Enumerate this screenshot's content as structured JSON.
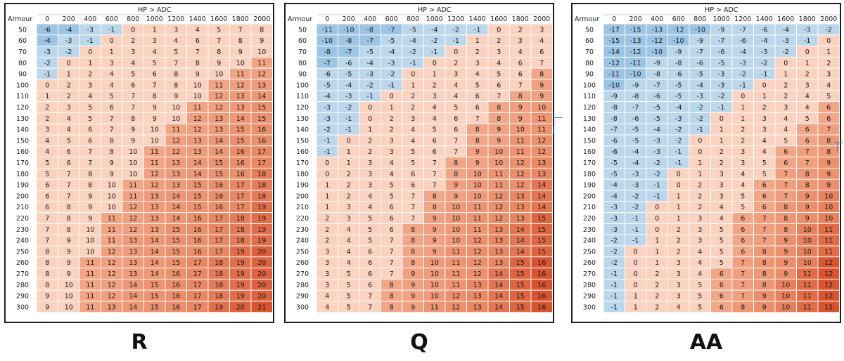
{
  "chart_data": [
    {
      "type": "heatmap",
      "label": "R",
      "top_title": "HP > ADC",
      "row_header": "Armour",
      "columns": [
        0,
        200,
        400,
        600,
        800,
        1000,
        1200,
        1400,
        1600,
        1800,
        2000
      ],
      "rows": [
        50,
        60,
        70,
        80,
        90,
        100,
        110,
        120,
        130,
        140,
        150,
        160,
        170,
        180,
        190,
        200,
        210,
        220,
        230,
        240,
        250,
        260,
        270,
        280,
        290,
        300
      ],
      "values": [
        [
          -6,
          -4,
          -3,
          -1,
          0,
          1,
          3,
          4,
          5,
          7,
          8
        ],
        [
          -4,
          -3,
          -1,
          0,
          2,
          3,
          4,
          6,
          7,
          8,
          9
        ],
        [
          -3,
          -2,
          0,
          1,
          3,
          4,
          5,
          7,
          8,
          9,
          10
        ],
        [
          -2,
          0,
          1,
          3,
          4,
          5,
          7,
          8,
          9,
          10,
          11
        ],
        [
          -1,
          1,
          2,
          4,
          5,
          6,
          8,
          9,
          10,
          11,
          12
        ],
        [
          0,
          2,
          3,
          4,
          6,
          7,
          8,
          10,
          11,
          12,
          13
        ],
        [
          1,
          2,
          4,
          5,
          7,
          8,
          9,
          10,
          12,
          13,
          14
        ],
        [
          2,
          3,
          5,
          6,
          7,
          9,
          10,
          11,
          12,
          13,
          15
        ],
        [
          2,
          4,
          5,
          7,
          8,
          9,
          10,
          12,
          13,
          14,
          15
        ],
        [
          3,
          4,
          6,
          7,
          9,
          10,
          11,
          12,
          13,
          15,
          16
        ],
        [
          4,
          5,
          6,
          8,
          9,
          10,
          12,
          13,
          14,
          15,
          16
        ],
        [
          4,
          6,
          7,
          8,
          10,
          11,
          12,
          13,
          14,
          16,
          17
        ],
        [
          5,
          6,
          7,
          9,
          10,
          11,
          13,
          14,
          15,
          16,
          17
        ],
        [
          5,
          7,
          8,
          9,
          10,
          12,
          13,
          14,
          15,
          16,
          18
        ],
        [
          6,
          7,
          8,
          10,
          11,
          12,
          13,
          15,
          16,
          17,
          18
        ],
        [
          6,
          7,
          9,
          10,
          11,
          13,
          14,
          15,
          16,
          17,
          18
        ],
        [
          6,
          8,
          9,
          10,
          12,
          13,
          14,
          15,
          16,
          17,
          19
        ],
        [
          7,
          8,
          9,
          11,
          12,
          13,
          14,
          16,
          17,
          18,
          19
        ],
        [
          7,
          8,
          10,
          11,
          12,
          13,
          15,
          16,
          17,
          18,
          19
        ],
        [
          7,
          9,
          10,
          11,
          13,
          14,
          15,
          16,
          17,
          18,
          19
        ],
        [
          8,
          9,
          10,
          12,
          13,
          14,
          15,
          16,
          17,
          19,
          20
        ],
        [
          8,
          9,
          11,
          12,
          13,
          14,
          15,
          17,
          18,
          19,
          20
        ],
        [
          8,
          9,
          11,
          12,
          13,
          14,
          16,
          17,
          18,
          19,
          20
        ],
        [
          8,
          10,
          11,
          12,
          14,
          15,
          16,
          17,
          18,
          19,
          20
        ],
        [
          9,
          10,
          11,
          12,
          14,
          15,
          16,
          17,
          18,
          19,
          20
        ],
        [
          9,
          10,
          11,
          13,
          14,
          15,
          16,
          17,
          19,
          20,
          21
        ]
      ]
    },
    {
      "type": "heatmap",
      "label": "Q",
      "top_title": "HP > ADC",
      "row_header": "Armour",
      "columns": [
        0,
        200,
        400,
        600,
        800,
        1000,
        1200,
        1400,
        1600,
        1800,
        2000
      ],
      "rows": [
        50,
        60,
        70,
        80,
        90,
        100,
        110,
        120,
        130,
        140,
        150,
        160,
        170,
        180,
        190,
        200,
        210,
        220,
        230,
        240,
        250,
        260,
        270,
        280,
        290,
        300
      ],
      "values": [
        [
          -11,
          -10,
          -8,
          -7,
          -5,
          -4,
          -2,
          -1,
          0,
          2,
          3
        ],
        [
          -10,
          -8,
          -7,
          -5,
          -4,
          -2,
          -1,
          1,
          2,
          3,
          4
        ],
        [
          -8,
          -7,
          -5,
          -4,
          -2,
          -1,
          0,
          2,
          3,
          4,
          6
        ],
        [
          -7,
          -6,
          -4,
          -3,
          -1,
          0,
          2,
          3,
          4,
          6,
          7
        ],
        [
          -6,
          -5,
          -3,
          -2,
          0,
          1,
          3,
          4,
          5,
          6,
          8
        ],
        [
          -5,
          -4,
          -2,
          -1,
          1,
          2,
          4,
          5,
          6,
          7,
          9
        ],
        [
          -4,
          -3,
          -1,
          0,
          2,
          3,
          4,
          6,
          7,
          8,
          9
        ],
        [
          -3,
          -2,
          0,
          1,
          2,
          4,
          5,
          6,
          8,
          9,
          10
        ],
        [
          -3,
          -1,
          0,
          2,
          3,
          4,
          6,
          7,
          8,
          9,
          11
        ],
        [
          -2,
          -1,
          1,
          2,
          4,
          5,
          6,
          8,
          9,
          10,
          11
        ],
        [
          -1,
          0,
          2,
          3,
          4,
          6,
          7,
          8,
          9,
          11,
          12
        ],
        [
          -1,
          1,
          2,
          3,
          5,
          6,
          7,
          9,
          10,
          11,
          12
        ],
        [
          0,
          1,
          3,
          4,
          5,
          7,
          8,
          9,
          10,
          12,
          13
        ],
        [
          0,
          2,
          3,
          4,
          6,
          7,
          8,
          10,
          11,
          12,
          13
        ],
        [
          1,
          2,
          3,
          5,
          6,
          7,
          9,
          10,
          11,
          12,
          14
        ],
        [
          1,
          2,
          4,
          5,
          7,
          8,
          9,
          10,
          12,
          13,
          14
        ],
        [
          1,
          3,
          4,
          6,
          7,
          8,
          10,
          11,
          12,
          13,
          14
        ],
        [
          2,
          3,
          5,
          6,
          7,
          9,
          10,
          11,
          12,
          13,
          15
        ],
        [
          2,
          4,
          5,
          6,
          8,
          9,
          10,
          11,
          13,
          14,
          15
        ],
        [
          2,
          4,
          5,
          7,
          8,
          9,
          10,
          12,
          13,
          14,
          15
        ],
        [
          3,
          4,
          6,
          7,
          8,
          9,
          11,
          12,
          13,
          14,
          15
        ],
        [
          3,
          4,
          6,
          7,
          8,
          10,
          11,
          12,
          13,
          15,
          16
        ],
        [
          3,
          5,
          6,
          7,
          9,
          10,
          11,
          12,
          14,
          15,
          16
        ],
        [
          3,
          5,
          6,
          8,
          9,
          10,
          11,
          13,
          14,
          15,
          16
        ],
        [
          4,
          5,
          7,
          8,
          9,
          10,
          12,
          13,
          14,
          15,
          16
        ],
        [
          4,
          5,
          7,
          8,
          9,
          11,
          12,
          13,
          14,
          15,
          16
        ]
      ]
    },
    {
      "type": "heatmap",
      "label": "AA",
      "top_title": "HP > ADC",
      "row_header": "Armour",
      "columns": [
        0,
        200,
        400,
        600,
        800,
        1000,
        1200,
        1400,
        1600,
        1800,
        2000
      ],
      "rows": [
        50,
        60,
        70,
        80,
        90,
        100,
        110,
        120,
        130,
        140,
        150,
        160,
        170,
        180,
        190,
        200,
        210,
        220,
        230,
        240,
        250,
        260,
        270,
        280,
        290,
        300
      ],
      "values": [
        [
          -17,
          -15,
          -13,
          -12,
          -10,
          -9,
          -7,
          -6,
          -4,
          -3,
          -2
        ],
        [
          -15,
          -13,
          -12,
          -10,
          -9,
          -7,
          -6,
          -4,
          -3,
          -1,
          0
        ],
        [
          -14,
          -12,
          -10,
          -9,
          -7,
          -6,
          -4,
          -3,
          -2,
          0,
          1
        ],
        [
          -12,
          -11,
          -9,
          -8,
          -6,
          -5,
          -3,
          -2,
          0,
          1,
          2
        ],
        [
          -11,
          -10,
          -8,
          -6,
          -5,
          -3,
          -2,
          -1,
          1,
          2,
          3
        ],
        [
          -10,
          -9,
          -7,
          -5,
          -4,
          -3,
          -1,
          0,
          2,
          3,
          4
        ],
        [
          -9,
          -8,
          -6,
          -5,
          -3,
          -2,
          0,
          1,
          2,
          4,
          5
        ],
        [
          -8,
          -7,
          -5,
          -4,
          -2,
          -1,
          1,
          2,
          3,
          4,
          6
        ],
        [
          -8,
          -6,
          -5,
          -3,
          -2,
          0,
          1,
          3,
          4,
          5,
          6
        ],
        [
          -7,
          -5,
          -4,
          -2,
          -1,
          1,
          2,
          3,
          4,
          6,
          7
        ],
        [
          -6,
          -5,
          -3,
          -2,
          0,
          1,
          2,
          4,
          5,
          6,
          8
        ],
        [
          -6,
          -4,
          -3,
          -1,
          0,
          2,
          3,
          4,
          6,
          7,
          8
        ],
        [
          -5,
          -4,
          -2,
          -1,
          1,
          2,
          3,
          5,
          6,
          7,
          9
        ],
        [
          -5,
          -3,
          -2,
          0,
          1,
          3,
          4,
          5,
          7,
          8,
          9
        ],
        [
          -4,
          -3,
          -1,
          0,
          2,
          3,
          4,
          6,
          7,
          8,
          9
        ],
        [
          -4,
          -2,
          -1,
          1,
          2,
          3,
          5,
          6,
          7,
          9,
          10
        ],
        [
          -3,
          -2,
          0,
          1,
          2,
          4,
          5,
          6,
          8,
          9,
          10
        ],
        [
          -3,
          -1,
          0,
          1,
          3,
          4,
          6,
          7,
          8,
          9,
          10
        ],
        [
          -3,
          -1,
          0,
          2,
          3,
          5,
          6,
          7,
          8,
          10,
          11
        ],
        [
          -2,
          -1,
          1,
          2,
          3,
          5,
          6,
          7,
          9,
          10,
          11
        ],
        [
          -2,
          0,
          1,
          2,
          4,
          5,
          6,
          8,
          9,
          10,
          11
        ],
        [
          -2,
          0,
          1,
          3,
          4,
          5,
          7,
          8,
          9,
          10,
          12
        ],
        [
          -1,
          0,
          2,
          3,
          4,
          6,
          7,
          8,
          9,
          11,
          12
        ],
        [
          -1,
          0,
          2,
          3,
          5,
          6,
          7,
          8,
          10,
          11,
          12
        ],
        [
          -1,
          1,
          2,
          3,
          5,
          6,
          7,
          9,
          10,
          11,
          12
        ],
        [
          -1,
          1,
          2,
          4,
          5,
          6,
          8,
          9,
          10,
          11,
          12
        ]
      ]
    }
  ],
  "colors": {
    "blue": "#bcd7ec",
    "deep_blue": "#9cc4e4",
    "light_red": "#fbd1bf",
    "mid_red": "#f3a88a",
    "strong_red": "#ea8a66",
    "deep_red": "#d85430"
  }
}
